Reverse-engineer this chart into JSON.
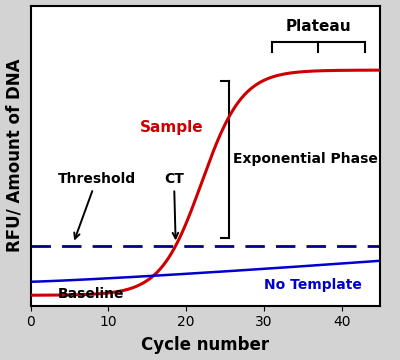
{
  "xlabel": "Cycle number",
  "ylabel": "RFU/ Amount of DNA",
  "xlim": [
    0,
    45
  ],
  "ylim": [
    0,
    10
  ],
  "background_color": "#d3d3d3",
  "plot_bg_color": "#ffffff",
  "sigmoid_color": "#cc0000",
  "no_template_color": "#0000cc",
  "threshold_y": 2.0,
  "threshold_dash_color": "#00008b",
  "no_template_y_start": 0.8,
  "no_template_y_end": 1.5,
  "sigmoid_L": 7.5,
  "sigmoid_k": 0.38,
  "sigmoid_x0": 22,
  "sigmoid_base": 0.35,
  "tick_fontsize": 10,
  "label_fontsize": 12,
  "annotation_fontsize": 10
}
